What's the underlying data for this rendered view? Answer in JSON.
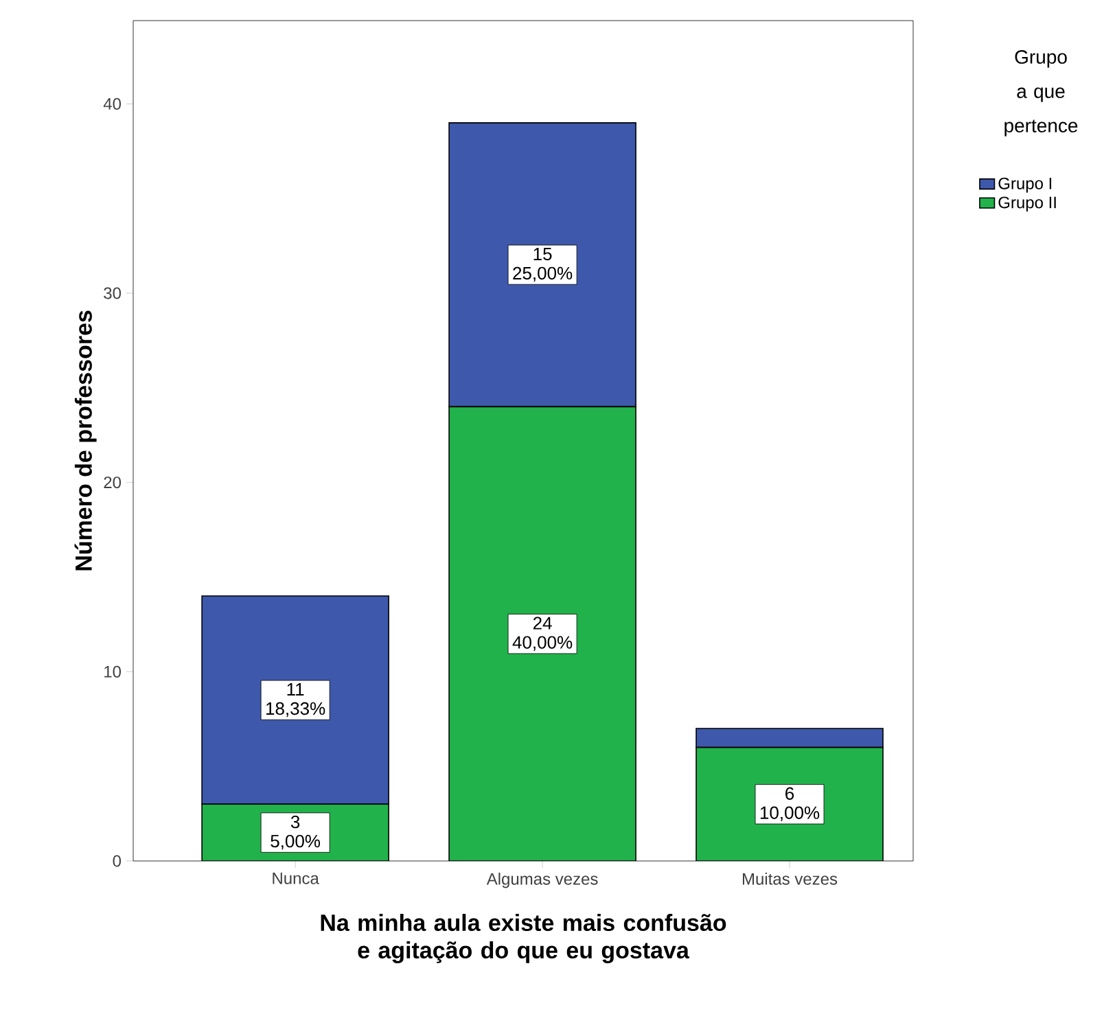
{
  "chart_data": {
    "type": "bar",
    "stacked": true,
    "xlabel": "Na minha aula existe mais confusão e agitação do que eu gostava",
    "ylabel": "Número de professores",
    "legend_title": "Grupo a que pertence",
    "legend": "top right",
    "categories": [
      "Nunca",
      "Algumas vezes",
      "Muitas vezes"
    ],
    "series": [
      {
        "name": "Grupo II",
        "color": "#21b24b",
        "values": [
          3,
          24,
          6
        ],
        "value_labels": [
          "3 5,00%",
          "24 40,00%",
          "6 10,00%"
        ]
      },
      {
        "name": "Grupo I",
        "color": "#3e58ac",
        "values": [
          11,
          15,
          1
        ],
        "value_labels": [
          "11 18,33%",
          "15 25,00%",
          null
        ]
      }
    ],
    "ylim": [
      0,
      44.4
    ],
    "yticks": [
      0,
      10,
      20,
      30,
      40
    ],
    "grid": false
  }
}
